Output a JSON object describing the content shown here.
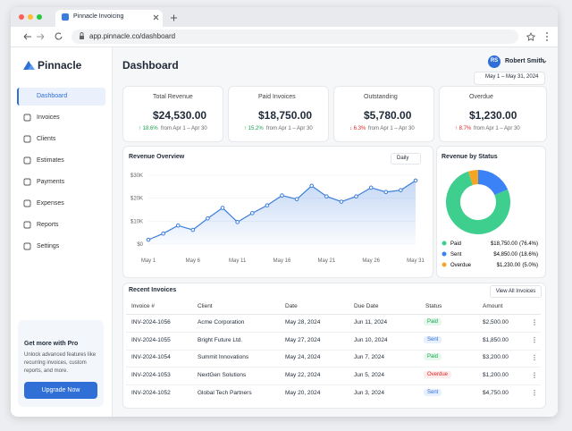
{
  "browser": {
    "tab_title": "Pinnacle Invoicing",
    "url": "app.pinnacle.co/dashboard"
  },
  "sidebar": {
    "brand": "Pinnacle",
    "nav": [
      "Dashboard",
      "Invoices",
      "Clients",
      "Estimates",
      "Payments",
      "Expenses",
      "Reports",
      "Settings"
    ],
    "promo": {
      "title": "Get more with Pro",
      "text": "Unlock advanced features like recurring invoices, custom reports, and more.",
      "button": "Upgrade Now"
    }
  },
  "header": {
    "title": "Dashboard",
    "user_initials": "RS",
    "user_name": "Robert Smith",
    "date_range": "May 1 – May 31, 2024"
  },
  "kpis": [
    {
      "label": "Total Revenue",
      "value": "$24,530.00",
      "change": "↑ 18.6%",
      "period": "from Apr 1 – Apr 30",
      "color": "#16a34a",
      "icon_color": "#3b82f6"
    },
    {
      "label": "Paid Invoices",
      "value": "$18,750.00",
      "change": "↑ 15.2%",
      "period": "from Apr 1 – Apr 30",
      "color": "#16a34a",
      "icon_color": "#22c55e"
    },
    {
      "label": "Outstanding",
      "value": "$5,780.00",
      "change": "↓ 6.3%",
      "period": "from Apr 1 – Apr 30",
      "color": "#dc2626",
      "icon_color": "#f59e0b"
    },
    {
      "label": "Overdue",
      "value": "$1,230.00",
      "change": "↑ 8.7%",
      "period": "from Apr 1 – Apr 30",
      "color": "#dc2626",
      "icon_color": "#8b5cf6"
    }
  ],
  "revenue_chart": {
    "type": "line",
    "title": "Revenue Overview",
    "interval": "Daily",
    "categories": [
      "May 1",
      null,
      null,
      "May 6",
      null,
      null,
      "May 11",
      null,
      null,
      "May 16",
      null,
      null,
      "May 21",
      null,
      null,
      "May 26",
      null,
      null,
      "May 31"
    ],
    "values": [
      1900,
      4600,
      8100,
      6200,
      11200,
      15800,
      9600,
      13500,
      16900,
      21200,
      19600,
      25400,
      20800,
      18500,
      20800,
      24600,
      22700,
      23500,
      27700
    ],
    "color": "#3b7ddd",
    "ylim": [
      0,
      30000
    ],
    "yticks": [
      {
        "value": 0,
        "label": "$0"
      },
      {
        "value": 10000,
        "label": "$10K"
      },
      {
        "value": 20000,
        "label": "$20K"
      },
      {
        "value": 30000,
        "label": "$30K"
      }
    ],
    "grid": true
  },
  "status_chart": {
    "type": "pie",
    "title": "Revenue by Status",
    "categories": [
      "Paid",
      "Sent",
      "Overdue"
    ],
    "values": [
      76.4,
      18.6,
      5.0
    ],
    "value_labels": [
      "(76.4%)",
      "(18.6%)",
      "(5.0%)"
    ],
    "amounts": [
      "$18,750.00",
      "$4,850.00",
      "$1,230.00"
    ],
    "colors": [
      "#3ecf8e",
      "#3b82f6",
      "#f5a524"
    ]
  },
  "invoices": {
    "title": "Recent Invoices",
    "button": "View All Invoices",
    "columns": [
      "Invoice #",
      "Client",
      "Date",
      "Due Date",
      "Status",
      "Amount"
    ],
    "rows": [
      [
        "INV-2024-1056",
        "Acme Corporation",
        "May 28, 2024",
        "Jun 11, 2024",
        "Paid",
        "$2,500.00"
      ],
      [
        "INV-2024-1055",
        "Bright Future Ltd.",
        "May 27, 2024",
        "Jun 10, 2024",
        "Sent",
        "$1,850.00"
      ],
      [
        "INV-2024-1054",
        "Summit Innovations",
        "May 24, 2024",
        "Jun 7, 2024",
        "Paid",
        "$3,200.00"
      ],
      [
        "INV-2024-1053",
        "NextGen Solutions",
        "May 22, 2024",
        "Jun 5, 2024",
        "Overdue",
        "$1,200.00"
      ],
      [
        "INV-2024-1052",
        "Global Tech Partners",
        "May 20, 2024",
        "Jun 3, 2024",
        "Sent",
        "$4,750.00"
      ]
    ]
  }
}
